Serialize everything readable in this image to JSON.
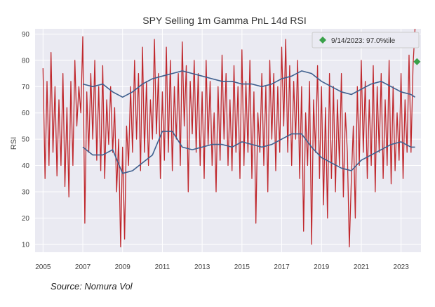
{
  "chart_data": {
    "type": "line",
    "title": "SPY Selling 1m Gamma PnL 14d RSI",
    "xlabel": "",
    "ylabel": "RSI",
    "xlim": [
      2004.6,
      2024.0
    ],
    "ylim": [
      7,
      92
    ],
    "x_ticks": [
      2005,
      2007,
      2009,
      2011,
      2013,
      2015,
      2017,
      2019,
      2021,
      2023
    ],
    "y_ticks": [
      10,
      20,
      30,
      40,
      50,
      60,
      70,
      80,
      90
    ],
    "grid": true,
    "legend_position": "top-right",
    "series": [
      {
        "name": "",
        "color": "#c0282d",
        "x": [
          2005.0,
          2005.1,
          2005.2,
          2005.3,
          2005.4,
          2005.5,
          2005.6,
          2005.7,
          2005.8,
          2005.9,
          2006.0,
          2006.1,
          2006.2,
          2006.3,
          2006.4,
          2006.5,
          2006.6,
          2006.7,
          2006.8,
          2006.9,
          2007.0,
          2007.1,
          2007.2,
          2007.3,
          2007.4,
          2007.5,
          2007.6,
          2007.7,
          2007.8,
          2007.9,
          2008.0,
          2008.1,
          2008.2,
          2008.3,
          2008.4,
          2008.5,
          2008.6,
          2008.7,
          2008.8,
          2008.9,
          2009.0,
          2009.1,
          2009.2,
          2009.3,
          2009.4,
          2009.5,
          2009.6,
          2009.7,
          2009.8,
          2009.9,
          2010.0,
          2010.1,
          2010.2,
          2010.3,
          2010.4,
          2010.5,
          2010.6,
          2010.7,
          2010.8,
          2010.9,
          2011.0,
          2011.1,
          2011.2,
          2011.3,
          2011.4,
          2011.5,
          2011.6,
          2011.7,
          2011.8,
          2011.9,
          2012.0,
          2012.1,
          2012.2,
          2012.3,
          2012.4,
          2012.5,
          2012.6,
          2012.7,
          2012.8,
          2012.9,
          2013.0,
          2013.1,
          2013.2,
          2013.3,
          2013.4,
          2013.5,
          2013.6,
          2013.7,
          2013.8,
          2013.9,
          2014.0,
          2014.1,
          2014.2,
          2014.3,
          2014.4,
          2014.5,
          2014.6,
          2014.7,
          2014.8,
          2014.9,
          2015.0,
          2015.1,
          2015.2,
          2015.3,
          2015.4,
          2015.5,
          2015.6,
          2015.7,
          2015.8,
          2015.9,
          2016.0,
          2016.1,
          2016.2,
          2016.3,
          2016.4,
          2016.5,
          2016.6,
          2016.7,
          2016.8,
          2016.9,
          2017.0,
          2017.1,
          2017.2,
          2017.3,
          2017.4,
          2017.5,
          2017.6,
          2017.7,
          2017.8,
          2017.9,
          2018.0,
          2018.1,
          2018.2,
          2018.3,
          2018.4,
          2018.5,
          2018.6,
          2018.7,
          2018.8,
          2018.9,
          2019.0,
          2019.1,
          2019.2,
          2019.3,
          2019.4,
          2019.5,
          2019.6,
          2019.7,
          2019.8,
          2019.9,
          2020.0,
          2020.1,
          2020.2,
          2020.3,
          2020.4,
          2020.5,
          2020.6,
          2020.7,
          2020.8,
          2020.9,
          2021.0,
          2021.1,
          2021.2,
          2021.3,
          2021.4,
          2021.5,
          2021.6,
          2021.7,
          2021.8,
          2021.9,
          2022.0,
          2022.1,
          2022.2,
          2022.3,
          2022.4,
          2022.5,
          2022.6,
          2022.7,
          2022.8,
          2022.9,
          2023.0,
          2023.1,
          2023.2,
          2023.3,
          2023.4,
          2023.5,
          2023.6,
          2023.7
        ],
        "y": [
          77,
          35,
          72,
          40,
          83,
          45,
          70,
          36,
          65,
          40,
          75,
          32,
          62,
          28,
          72,
          40,
          80,
          55,
          70,
          60,
          89,
          18,
          68,
          45,
          75,
          50,
          80,
          42,
          70,
          38,
          78,
          35,
          65,
          48,
          70,
          45,
          62,
          30,
          50,
          9,
          47,
          12,
          55,
          40,
          70,
          45,
          80,
          50,
          75,
          38,
          85,
          45,
          72,
          40,
          65,
          50,
          88,
          52,
          75,
          35,
          68,
          42,
          85,
          45,
          80,
          38,
          70,
          50,
          75,
          40,
          87,
          55,
          78,
          30,
          72,
          52,
          80,
          45,
          75,
          40,
          68,
          35,
          80,
          48,
          72,
          40,
          60,
          30,
          70,
          42,
          82,
          50,
          75,
          40,
          65,
          38,
          78,
          45,
          70,
          35,
          84,
          40,
          72,
          45,
          80,
          35,
          68,
          18,
          60,
          45,
          75,
          40,
          70,
          30,
          80,
          50,
          75,
          38,
          70,
          45,
          85,
          55,
          88,
          45,
          78,
          40,
          72,
          50,
          80,
          35,
          70,
          15,
          60,
          40,
          72,
          10,
          65,
          45,
          78,
          35,
          70,
          25,
          62,
          20,
          75,
          35,
          70,
          30,
          65,
          40,
          75,
          28,
          60,
          45,
          9,
          35,
          55,
          20,
          70,
          40,
          80,
          45,
          72,
          35,
          65,
          40,
          78,
          30,
          70,
          45,
          75,
          35,
          65,
          40,
          80,
          33,
          70,
          38,
          60,
          42,
          75,
          35,
          65,
          45,
          82,
          45,
          78,
          97
        ]
      },
      {
        "name": "",
        "color": "#3e5f8e",
        "x": [
          2007.0,
          2007.5,
          2008.0,
          2008.5,
          2009.0,
          2009.5,
          2010.0,
          2010.5,
          2011.0,
          2011.5,
          2012.0,
          2012.5,
          2013.0,
          2013.5,
          2014.0,
          2014.5,
          2015.0,
          2015.5,
          2016.0,
          2016.5,
          2017.0,
          2017.5,
          2018.0,
          2018.5,
          2019.0,
          2019.5,
          2020.0,
          2020.5,
          2021.0,
          2021.5,
          2022.0,
          2022.5,
          2023.0,
          2023.5,
          2023.7
        ],
        "y": [
          71,
          70,
          71,
          68,
          66,
          68,
          71,
          73,
          74,
          75,
          76,
          75,
          74,
          73,
          72,
          72,
          71,
          71,
          70,
          71,
          73,
          74,
          76,
          75,
          72,
          70,
          68,
          67,
          69,
          71,
          72,
          70,
          68,
          67,
          66
        ]
      },
      {
        "name": "",
        "color": "#3e5f8e",
        "x": [
          2007.0,
          2007.5,
          2008.0,
          2008.5,
          2009.0,
          2009.5,
          2010.0,
          2010.5,
          2011.0,
          2011.5,
          2012.0,
          2012.5,
          2013.0,
          2013.5,
          2014.0,
          2014.5,
          2015.0,
          2015.5,
          2016.0,
          2016.5,
          2017.0,
          2017.5,
          2018.0,
          2018.5,
          2019.0,
          2019.5,
          2020.0,
          2020.5,
          2021.0,
          2021.5,
          2022.0,
          2022.5,
          2023.0,
          2023.5,
          2023.7
        ],
        "y": [
          47,
          44,
          44,
          46,
          37,
          38,
          41,
          44,
          53,
          53,
          47,
          46,
          47,
          48,
          48,
          47,
          49,
          48,
          47,
          48,
          50,
          52,
          52,
          47,
          43,
          41,
          39,
          38,
          42,
          44,
          46,
          48,
          49,
          47,
          47
        ]
      }
    ],
    "highlight": {
      "label": "9/14/2023: 97.0%tile",
      "x": 2023.8,
      "y": 79.5,
      "color": "#3aa14a",
      "marker": "diamond"
    }
  },
  "source_text": "Source: Nomura Vol"
}
